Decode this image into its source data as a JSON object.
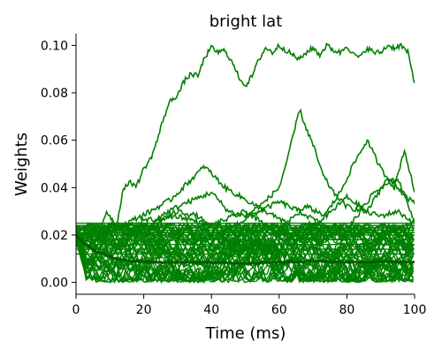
{
  "colors": {
    "series": "#008000",
    "mean": "#005a00",
    "axis": "#000000",
    "background": "#ffffff"
  },
  "chart_data": {
    "type": "line",
    "title": "bright lat",
    "xlabel": "Time (ms)",
    "ylabel": "Weights",
    "xlim": [
      0,
      100
    ],
    "ylim": [
      -0.005,
      0.105
    ],
    "xticks": [
      0,
      20,
      40,
      60,
      80,
      100
    ],
    "xtick_labels": [
      "0",
      "20",
      "40",
      "60",
      "80",
      "100"
    ],
    "yticks": [
      0.0,
      0.02,
      0.04,
      0.06,
      0.08,
      0.1
    ],
    "ytick_labels": [
      "0.00",
      "0.02",
      "0.04",
      "0.06",
      "0.08",
      "0.10"
    ],
    "grid": false,
    "legend": false,
    "spines": "left-bottom",
    "series": [
      {
        "role": "rising-to-max",
        "x": [
          0,
          3,
          6,
          9,
          12,
          14,
          16,
          18,
          20,
          22,
          24,
          26,
          28,
          30,
          32,
          34,
          36,
          38,
          40,
          42,
          44,
          46,
          48,
          50,
          52,
          54,
          56,
          58,
          60,
          62,
          64,
          66,
          68,
          70,
          72,
          74,
          76,
          78,
          80,
          82,
          84,
          86,
          88,
          90,
          92,
          94,
          96,
          98,
          100
        ],
        "y": [
          0.015,
          0.022,
          0.018,
          0.03,
          0.024,
          0.04,
          0.042,
          0.041,
          0.048,
          0.052,
          0.06,
          0.07,
          0.077,
          0.079,
          0.085,
          0.088,
          0.087,
          0.095,
          0.099,
          0.097,
          0.098,
          0.093,
          0.087,
          0.083,
          0.087,
          0.094,
          0.099,
          0.097,
          0.1,
          0.098,
          0.096,
          0.094,
          0.097,
          0.099,
          0.096,
          0.1,
          0.098,
          0.097,
          0.1,
          0.096,
          0.095,
          0.099,
          0.097,
          0.097,
          0.1,
          0.099,
          0.1,
          0.097,
          0.084
        ]
      },
      {
        "role": "excursion",
        "x": [
          0,
          5,
          10,
          15,
          20,
          25,
          30,
          35,
          40,
          45,
          50,
          55,
          60,
          63,
          66,
          68,
          70,
          73,
          76,
          80,
          85,
          90,
          95,
          100
        ],
        "y": [
          0.02,
          0.016,
          0.025,
          0.022,
          0.02,
          0.028,
          0.032,
          0.035,
          0.038,
          0.03,
          0.028,
          0.033,
          0.04,
          0.055,
          0.073,
          0.065,
          0.058,
          0.045,
          0.038,
          0.032,
          0.03,
          0.028,
          0.03,
          0.025
        ]
      },
      {
        "role": "excursion",
        "x": [
          0,
          6,
          12,
          18,
          24,
          30,
          36,
          42,
          48,
          54,
          60,
          66,
          72,
          78,
          82,
          86,
          90,
          94,
          97,
          100
        ],
        "y": [
          0.018,
          0.02,
          0.015,
          0.022,
          0.025,
          0.03,
          0.028,
          0.02,
          0.025,
          0.03,
          0.034,
          0.03,
          0.025,
          0.038,
          0.05,
          0.06,
          0.048,
          0.04,
          0.056,
          0.038
        ]
      },
      {
        "role": "excursion",
        "x": [
          0,
          8,
          15,
          22,
          28,
          33,
          38,
          44,
          50,
          56,
          62,
          68,
          74,
          80,
          86,
          92,
          100
        ],
        "y": [
          0.02,
          0.018,
          0.025,
          0.03,
          0.035,
          0.042,
          0.049,
          0.04,
          0.035,
          0.03,
          0.025,
          0.032,
          0.028,
          0.036,
          0.03,
          0.044,
          0.033
        ]
      },
      {
        "role": "excursion",
        "x": [
          0,
          10,
          20,
          30,
          40,
          50,
          60,
          70,
          80,
          88,
          95,
          100
        ],
        "y": [
          0.02,
          0.022,
          0.026,
          0.028,
          0.024,
          0.03,
          0.02,
          0.025,
          0.022,
          0.038,
          0.044,
          0.026
        ]
      },
      {
        "role": "mean",
        "x": [
          0,
          2,
          4,
          6,
          8,
          10,
          12,
          14,
          16,
          18,
          20,
          25,
          30,
          40,
          50,
          60,
          70,
          80,
          90,
          100
        ],
        "y": [
          0.02,
          0.017,
          0.015,
          0.013,
          0.012,
          0.011,
          0.01,
          0.0095,
          0.009,
          0.009,
          0.0088,
          0.0085,
          0.0085,
          0.0085,
          0.008,
          0.0085,
          0.009,
          0.0085,
          0.0088,
          0.0085
        ]
      }
    ],
    "flat_lines": [
      0.012,
      0.014,
      0.016,
      0.018,
      0.02,
      0.021,
      0.022,
      0.023,
      0.024,
      0.025
    ],
    "noise_band": {
      "x_start": 3,
      "ymin": 0.0,
      "ymax": 0.025,
      "trace_count": 40
    }
  }
}
